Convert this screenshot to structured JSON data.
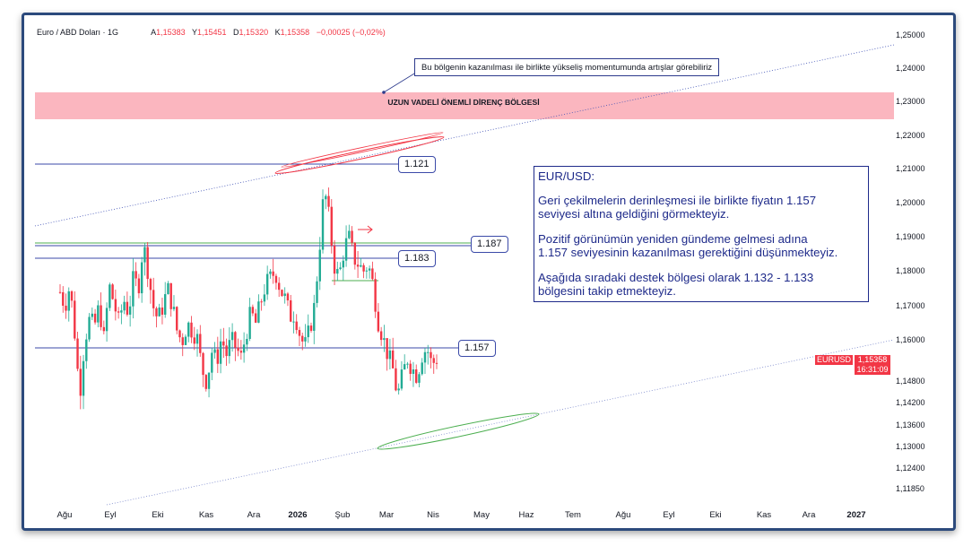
{
  "header": {
    "symbol": "Euro / ABD Doları · 1G",
    "open_key": "A",
    "open": "1,15383",
    "high_key": "Y",
    "high": "1,15451",
    "low_key": "D",
    "low": "1,15320",
    "close_key": "K",
    "close": "1,15358",
    "change": "−0,00025 (−0,02%)"
  },
  "annotations": {
    "callout": "Bu bölgenin kazanılması ile birlikte yükseliş momentumunda artışlar görebiliriz",
    "resistance_zone": "UZUN VADELİ ÖNEMLİ DİRENÇ BÖLGESİ",
    "level_1121": "1.121",
    "level_1187": "1.187",
    "level_1183": "1.183",
    "level_1157": "1.157",
    "note_title": "EUR/USD:",
    "note_p1": "Geri çekilmelerin derinleşmesi ile birlikte fiyatın 1.157\nseviyesi altına geldiğini görmekteyiz.",
    "note_p2": "Pozitif görünümün yeniden gündeme gelmesi adına\n1.157 seviyesinin kazanılması gerektiğini düşünmekteyiz.",
    "note_p3": "Aşağıda sıradaki destek bölgesi olarak 1.132 - 1.133\nbölgesini takip etmekteyiz."
  },
  "price_scale": {
    "symbol_tag": "EURUSD",
    "last_price": "1,15358",
    "countdown": "16:31:09"
  },
  "colors": {
    "up": "#22ab94",
    "down": "#f23645",
    "level_line": "#3b4aa8",
    "green_line": "#4caf50",
    "zone": "#fbb6bf",
    "trend": "#3f51b5"
  },
  "chart_data": {
    "type": "candlestick",
    "title": "Euro / ABD Doları · 1G",
    "x_tick_labels": [
      "Ağu",
      "Eyl",
      "Eki",
      "Kas",
      "Ara",
      "2026",
      "Şub",
      "Mar",
      "Nis",
      "May",
      "Haz",
      "Tem",
      "Ağu",
      "Eyl",
      "Eki",
      "Kas",
      "Ara",
      "2027"
    ],
    "y_tick_labels": [
      "1,25000",
      "1,24000",
      "1,23000",
      "1,22000",
      "1,21000",
      "1,20000",
      "1,19000",
      "1,18000",
      "1,17000",
      "1,16000",
      "1,14800",
      "1,14200",
      "1,13600",
      "1,13000",
      "1,12400",
      "1,11850"
    ],
    "last_price": 1.15358,
    "horizontal_levels": [
      1.121,
      1.187,
      1.183,
      1.157
    ],
    "resistance_zone_label": "UZUN VADELİ ÖNEMLİ DİRENÇ BÖLGESİ",
    "price_path": [
      1.174,
      1.17,
      1.176,
      1.162,
      1.144,
      1.16,
      1.166,
      1.164,
      1.17,
      1.16,
      1.176,
      1.171,
      1.165,
      1.172,
      1.168,
      1.178,
      1.175,
      1.188,
      1.18,
      1.17,
      1.166,
      1.17,
      1.175,
      1.17,
      1.162,
      1.16,
      1.165,
      1.163,
      1.161,
      1.152,
      1.148,
      1.157,
      1.154,
      1.161,
      1.156,
      1.16,
      1.158,
      1.155,
      1.162,
      1.168,
      1.165,
      1.171,
      1.176,
      1.178,
      1.18,
      1.175,
      1.172,
      1.167,
      1.168,
      1.162,
      1.158,
      1.163,
      1.17,
      1.186,
      1.204,
      1.195,
      1.182,
      1.178,
      1.186,
      1.19,
      1.184,
      1.182,
      1.18,
      1.182,
      1.176,
      1.166,
      1.161,
      1.156,
      1.152,
      1.144,
      1.15,
      1.155,
      1.152,
      1.15,
      1.156,
      1.158,
      1.153,
      1.155
    ]
  }
}
